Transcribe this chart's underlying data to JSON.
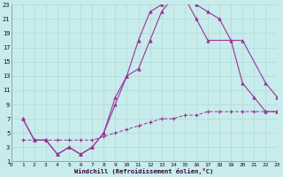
{
  "xlabel": "Windchill (Refroidissement éolien,°C)",
  "bg_color": "#c8ecec",
  "grid_color": "#b0d8d8",
  "line_color": "#993399",
  "line1_x": [
    1,
    2,
    3,
    4,
    5,
    6,
    7,
    8,
    9,
    10,
    11,
    12,
    13,
    14,
    15,
    16,
    17,
    18,
    19,
    20,
    21,
    22,
    23
  ],
  "line1_y": [
    7,
    4,
    4,
    2,
    3,
    2,
    3,
    5,
    9,
    13,
    18,
    22,
    23,
    24,
    24,
    23,
    22,
    21,
    18,
    12,
    10,
    8,
    8
  ],
  "line2_x": [
    1,
    2,
    3,
    4,
    5,
    6,
    7,
    8,
    9,
    10,
    11,
    12,
    13,
    14,
    15,
    16,
    17,
    20,
    22,
    23
  ],
  "line2_y": [
    7,
    4,
    4,
    2,
    3,
    2,
    3,
    5,
    10,
    13,
    14,
    18,
    22,
    24,
    24,
    21,
    18,
    18,
    12,
    10
  ],
  "line3_x": [
    1,
    2,
    3,
    4,
    5,
    6,
    7,
    8,
    9,
    10,
    11,
    12,
    13,
    14,
    15,
    16,
    17,
    18,
    19,
    20,
    21,
    22,
    23
  ],
  "line3_y": [
    4,
    4,
    4,
    4,
    4,
    4,
    4,
    4.5,
    5,
    5.5,
    6,
    6.5,
    7,
    7,
    7.5,
    7.5,
    8,
    8,
    8,
    8,
    8,
    8,
    8
  ],
  "xmin": 0,
  "xmax": 23,
  "ymin": 1,
  "ymax": 23,
  "xticks": [
    0,
    1,
    2,
    3,
    4,
    5,
    6,
    7,
    8,
    9,
    10,
    11,
    12,
    13,
    14,
    15,
    16,
    17,
    18,
    19,
    20,
    21,
    22,
    23
  ],
  "yticks": [
    1,
    3,
    5,
    7,
    9,
    11,
    13,
    15,
    17,
    19,
    21,
    23
  ]
}
